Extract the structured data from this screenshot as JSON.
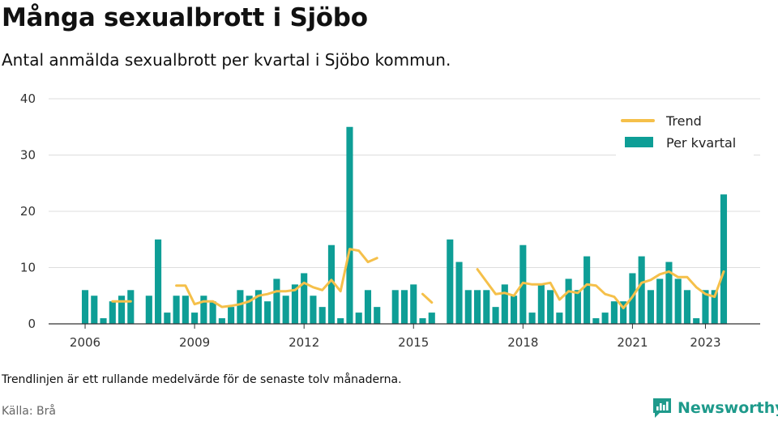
{
  "title": "Många sexualbrott i Sjöbo",
  "subtitle": "Antal anmälda sexualbrott per kvartal i Sjöbo kommun.",
  "note": "Trendlinjen är ett rullande medelvärde för de senaste tolv månaderna.",
  "source": "Källa: Brå",
  "brand": {
    "name": "Newsworthy",
    "color": "#1e9a8b"
  },
  "colors": {
    "bars": "#0e9e96",
    "trend": "#f5c04a",
    "grid": "#dddddd",
    "axis": "#333333"
  },
  "chart_data": {
    "type": "bar",
    "title": "Många sexualbrott i Sjöbo",
    "subtitle": "Antal anmälda sexualbrott per kvartal i Sjöbo kommun.",
    "ylim": [
      0,
      40
    ],
    "y_ticks": [
      0,
      10,
      20,
      30,
      40
    ],
    "x_ticks": [
      "2006",
      "2009",
      "2012",
      "2015",
      "2018",
      "2021",
      "2023"
    ],
    "x_tick_positions": [
      2006,
      2009,
      2012,
      2015,
      2018,
      2021,
      2023
    ],
    "xlim": [
      2005.0,
      2024.5
    ],
    "grid": true,
    "legend": {
      "position": "top-right",
      "entries": [
        "Trend",
        "Per kvartal"
      ]
    },
    "series": [
      {
        "name": "Per kvartal",
        "type": "bar",
        "x": [
          2006.0,
          2006.25,
          2006.5,
          2006.75,
          2007.0,
          2007.25,
          2007.75,
          2008.0,
          2008.25,
          2008.5,
          2008.75,
          2009.0,
          2009.25,
          2009.5,
          2009.75,
          2010.0,
          2010.25,
          2010.5,
          2010.75,
          2011.0,
          2011.25,
          2011.5,
          2011.75,
          2012.0,
          2012.25,
          2012.5,
          2012.75,
          2013.0,
          2013.25,
          2013.5,
          2013.75,
          2014.0,
          2014.5,
          2014.75,
          2015.0,
          2015.25,
          2015.5,
          2016.0,
          2016.25,
          2016.5,
          2016.75,
          2017.0,
          2017.25,
          2017.5,
          2017.75,
          2018.0,
          2018.25,
          2018.5,
          2018.75,
          2019.0,
          2019.25,
          2019.5,
          2019.75,
          2020.0,
          2020.25,
          2020.5,
          2020.75,
          2021.0,
          2021.25,
          2021.5,
          2021.75,
          2022.0,
          2022.25,
          2022.5,
          2022.75,
          2023.0,
          2023.25,
          2023.5
        ],
        "values": [
          6,
          5,
          1,
          4,
          5,
          6,
          5,
          15,
          2,
          5,
          5,
          2,
          5,
          4,
          1,
          3,
          6,
          5,
          6,
          4,
          8,
          5,
          7,
          9,
          5,
          3,
          14,
          1,
          35,
          2,
          6,
          3,
          6,
          6,
          7,
          1,
          2,
          15,
          11,
          6,
          6,
          6,
          3,
          7,
          5,
          14,
          2,
          7,
          6,
          2,
          8,
          6,
          12,
          1,
          2,
          4,
          4,
          9,
          12,
          6,
          8,
          11,
          8,
          6,
          1,
          6,
          6,
          23
        ]
      },
      {
        "name": "Trend",
        "type": "line",
        "segments": [
          {
            "x": [
              2006.75,
              2007.0,
              2007.25
            ],
            "y": [
              4.0,
              4.0,
              4.0
            ]
          },
          {
            "x": [
              2008.5,
              2008.75,
              2009.0,
              2009.25,
              2009.5,
              2009.75,
              2010.0,
              2010.25,
              2010.5,
              2010.75,
              2011.0,
              2011.25,
              2011.5,
              2011.75,
              2012.0,
              2012.25,
              2012.5,
              2012.75,
              2013.0,
              2013.25,
              2013.5,
              2013.75,
              2014.0
            ],
            "y": [
              6.8,
              6.8,
              3.5,
              4.0,
              4.0,
              3.0,
              3.2,
              3.5,
              4.0,
              5.0,
              5.3,
              5.8,
              5.8,
              6.0,
              7.3,
              6.5,
              6.0,
              7.8,
              5.8,
              13.3,
              13.0,
              11.0,
              11.7
            ]
          },
          {
            "x": [
              2015.25,
              2015.5
            ],
            "y": [
              5.3,
              3.8
            ]
          },
          {
            "x": [
              2016.75,
              2017.0,
              2017.25,
              2017.5,
              2017.75,
              2018.0,
              2018.25,
              2018.5,
              2018.75,
              2019.0,
              2019.25,
              2019.5,
              2019.75,
              2020.0,
              2020.25,
              2020.5,
              2020.75,
              2021.0,
              2021.25,
              2021.5,
              2021.75,
              2022.0,
              2022.25,
              2022.5,
              2022.75,
              2023.0,
              2023.25,
              2023.5
            ],
            "y": [
              9.7,
              7.5,
              5.3,
              5.5,
              5.0,
              7.3,
              7.0,
              7.0,
              7.3,
              4.3,
              5.8,
              5.5,
              7.0,
              6.8,
              5.3,
              4.8,
              2.8,
              4.8,
              7.3,
              7.8,
              8.8,
              9.3,
              8.3,
              8.3,
              6.5,
              5.3,
              4.8,
              9.3
            ]
          }
        ]
      }
    ]
  }
}
